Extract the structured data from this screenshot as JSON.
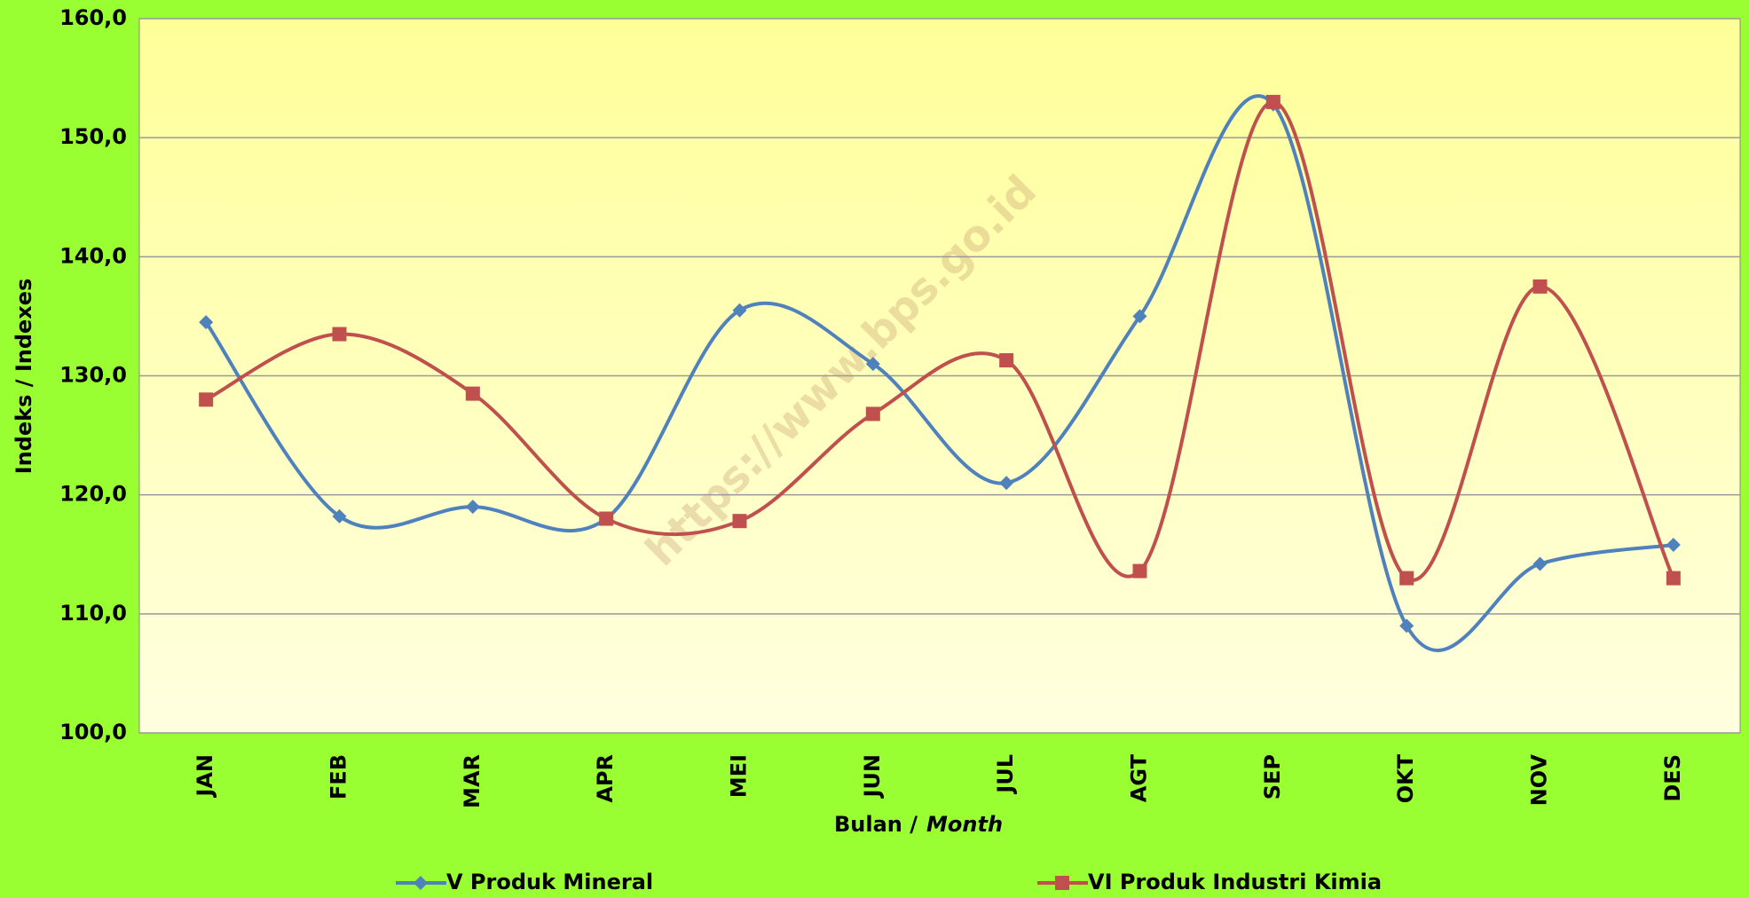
{
  "chart_data": {
    "type": "line",
    "x_label": "Bulan /",
    "x_label_italic": "Month",
    "y_label": "Indeks / Indexes",
    "watermark": "https://www.bps.go.id",
    "categories": [
      "JAN",
      "FEB",
      "MAR",
      "APR",
      "MEI",
      "JUN",
      "JUL",
      "AGT",
      "SEP",
      "OKT",
      "NOV",
      "DES"
    ],
    "series": [
      {
        "name": "V Produk Mineral",
        "color": "#4f81bd",
        "marker": "diamond",
        "values": [
          134.5,
          118.2,
          119.0,
          118.0,
          135.5,
          131.0,
          121.0,
          135.0,
          152.8,
          109.0,
          114.2,
          115.8
        ]
      },
      {
        "name": "VI Produk Industri Kimia",
        "color": "#c0504d",
        "marker": "square",
        "values": [
          128.0,
          133.5,
          128.5,
          118.0,
          117.8,
          126.8,
          131.3,
          113.6,
          153.0,
          113.0,
          137.5,
          113.0
        ]
      }
    ],
    "ylim": [
      100,
      160
    ],
    "yticks": [
      {
        "value": 100,
        "label": "100,0"
      },
      {
        "value": 110,
        "label": "110,0"
      },
      {
        "value": 120,
        "label": "120,0"
      },
      {
        "value": 130,
        "label": "130,0"
      },
      {
        "value": 140,
        "label": "140,0"
      },
      {
        "value": 150,
        "label": "150,0"
      },
      {
        "value": 160,
        "label": "160,0"
      }
    ],
    "grid": true,
    "legend": "bottom",
    "smooth": true
  }
}
